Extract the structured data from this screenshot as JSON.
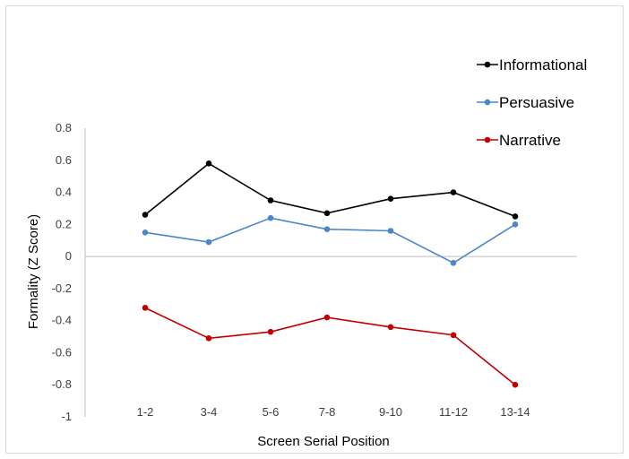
{
  "chart_data": {
    "type": "line",
    "xlabel": "Screen Serial Position",
    "ylabel": "Formality (Z Score)",
    "categories": [
      "1-2",
      "3-4",
      "5-6",
      "7-8",
      "9-10",
      "11-12",
      "13-14"
    ],
    "ylim": [
      -1,
      0.8
    ],
    "yticks": [
      "0.8",
      "0.6",
      "0.4",
      "0.2",
      "0",
      "-0.2",
      "-0.4",
      "-0.6",
      "-0.8",
      "-1"
    ],
    "grid": false,
    "legend_position": "top-right",
    "series": [
      {
        "name": "Informational",
        "color": "#000000",
        "values": [
          0.26,
          0.58,
          0.35,
          0.27,
          0.36,
          0.4,
          0.25
        ]
      },
      {
        "name": "Persuasive",
        "color": "#4a86c8",
        "values": [
          0.15,
          0.09,
          0.24,
          0.17,
          0.16,
          -0.04,
          0.2
        ]
      },
      {
        "name": "Narrative",
        "color": "#c00000",
        "values": [
          -0.32,
          -0.51,
          -0.47,
          -0.38,
          -0.44,
          -0.49,
          -0.8
        ]
      }
    ]
  }
}
